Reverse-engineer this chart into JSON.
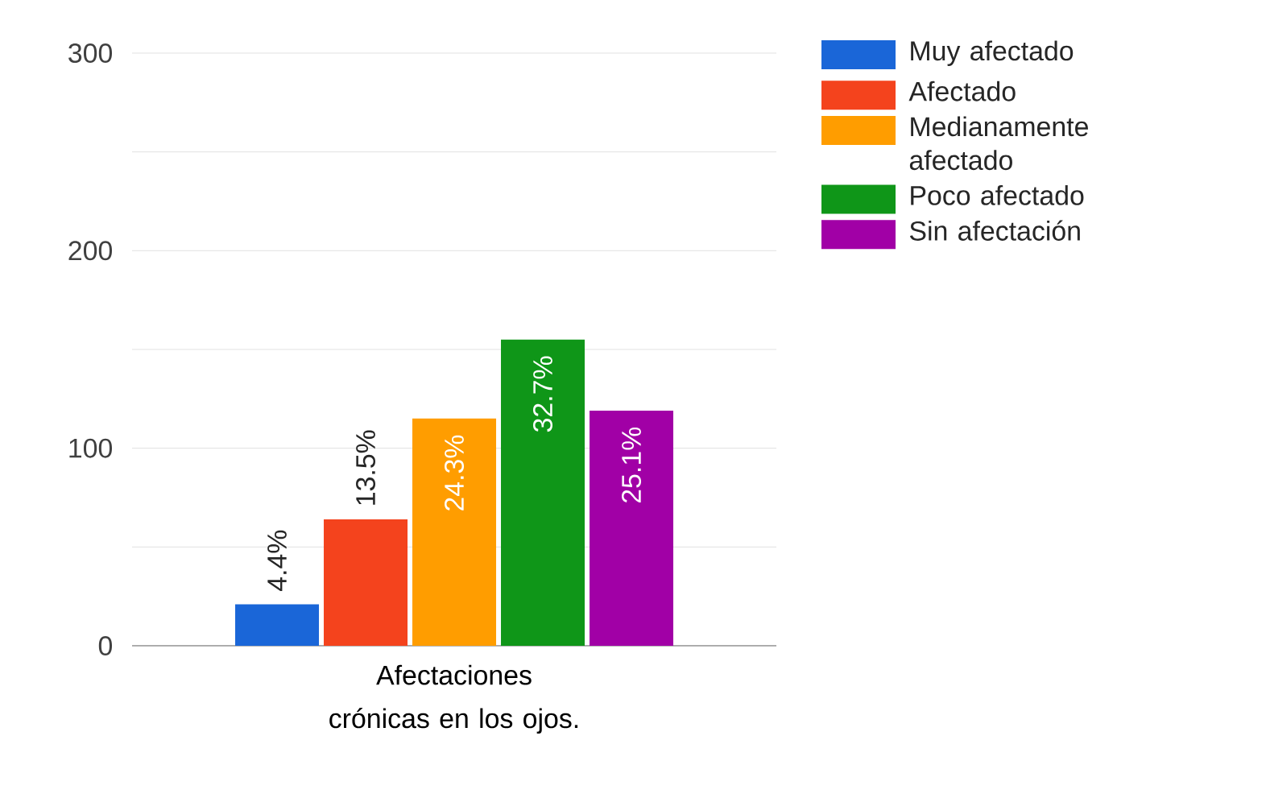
{
  "chart_data": {
    "type": "bar",
    "categories": [
      "Afectaciones crónicas en los ojos."
    ],
    "series": [
      {
        "name": "Muy afectado",
        "color": "#1a66d8",
        "values": [
          21
        ]
      },
      {
        "name": "Afectado",
        "color": "#f4431d",
        "values": [
          64
        ]
      },
      {
        "name": "Medianamente afectado",
        "color": "#ff9d00",
        "values": [
          115
        ]
      },
      {
        "name": "Poco afectado",
        "color": "#0f9618",
        "values": [
          155
        ]
      },
      {
        "name": "Sin afectación",
        "color": "#a100a6",
        "values": [
          119
        ]
      }
    ],
    "annotations": [
      "4.4%",
      "13.5%",
      "24.3%",
      "32.7%",
      "25.1%"
    ],
    "ylim": [
      0,
      300
    ],
    "yticks": [
      0,
      {
        "value": 50,
        "label": null
      },
      100,
      {
        "value": 150,
        "label": null
      },
      200,
      {
        "value": 250,
        "label": null
      },
      300
    ],
    "grid": "y",
    "legend": "right"
  }
}
